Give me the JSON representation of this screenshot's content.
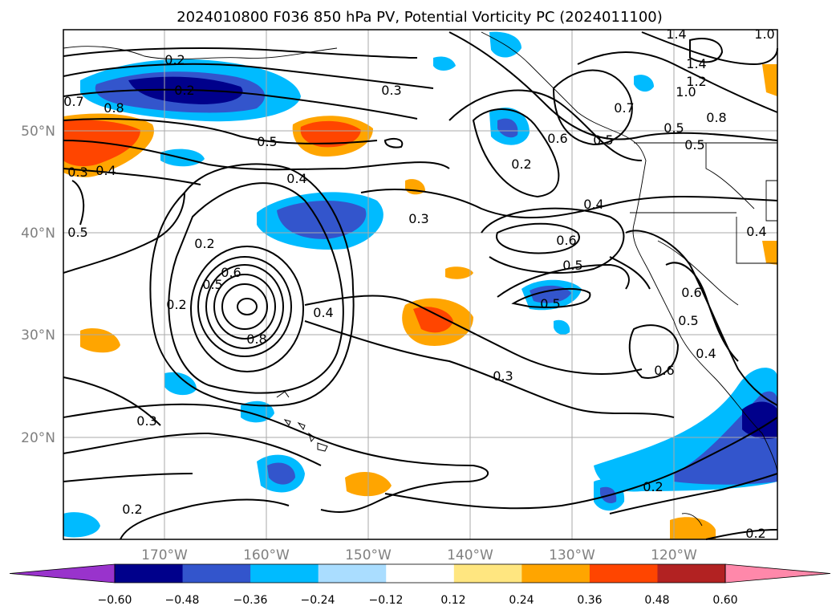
{
  "title": "2024010800 F036 850 hPa PV, Potential Vorticity PC (2024011100)",
  "map": {
    "lat_labels": [
      "50°N",
      "40°N",
      "30°N",
      "20°N"
    ],
    "lon_labels": [
      "170°W",
      "160°W",
      "150°W",
      "140°W",
      "130°W",
      "120°W"
    ],
    "contour_labels": [
      "0.2",
      "0.3",
      "0.4",
      "0.5",
      "0.6",
      "0.7",
      "0.8",
      "1.0",
      "1.2",
      "1.4"
    ]
  },
  "colorbar": {
    "ticks": [
      "−0.60",
      "−0.48",
      "−0.36",
      "−0.24",
      "−0.12",
      "0.12",
      "0.24",
      "0.36",
      "0.48",
      "0.60"
    ],
    "colors": [
      "#9933cc",
      "#00008b",
      "#3355cc",
      "#00bbff",
      "#aaddff",
      "#ffffff",
      "#ffe680",
      "#ffa500",
      "#ff4500",
      "#b22222",
      "#ff88aa"
    ]
  }
}
